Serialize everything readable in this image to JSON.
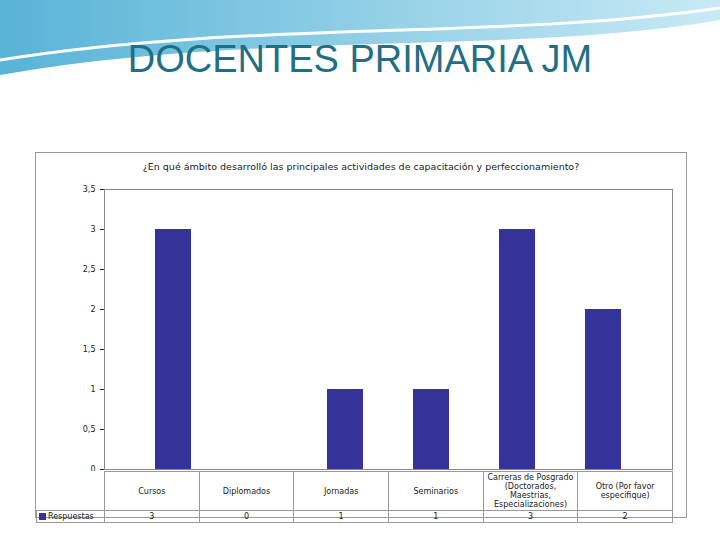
{
  "header": {
    "title": "DOCENTES PRIMARIA JM"
  },
  "chart_data": {
    "type": "bar",
    "title": "¿En qué ámbito desarrolló las principales actividades de capacitación y perfeccionamiento?",
    "categories": [
      "Cursos",
      "Diplomados",
      "Jornadas",
      "Seminarios",
      "Carreras de Posgrado (Doctorados, Maestrias, Especializaciones)",
      "Otro (Por favor especifique)"
    ],
    "series": [
      {
        "name": "Respuestas",
        "color": "#333399",
        "values": [
          3,
          0,
          1,
          1,
          3,
          2
        ]
      }
    ],
    "ylim": [
      0,
      3.5
    ],
    "yticks": [
      0,
      {
        "value": 0.5,
        "label": "0,5"
      },
      1,
      {
        "value": 1.5,
        "label": "1,5"
      },
      2,
      {
        "value": 2.5,
        "label": "2,5"
      },
      3,
      {
        "value": 3.5,
        "label": "3,5"
      }
    ],
    "grid": false
  }
}
